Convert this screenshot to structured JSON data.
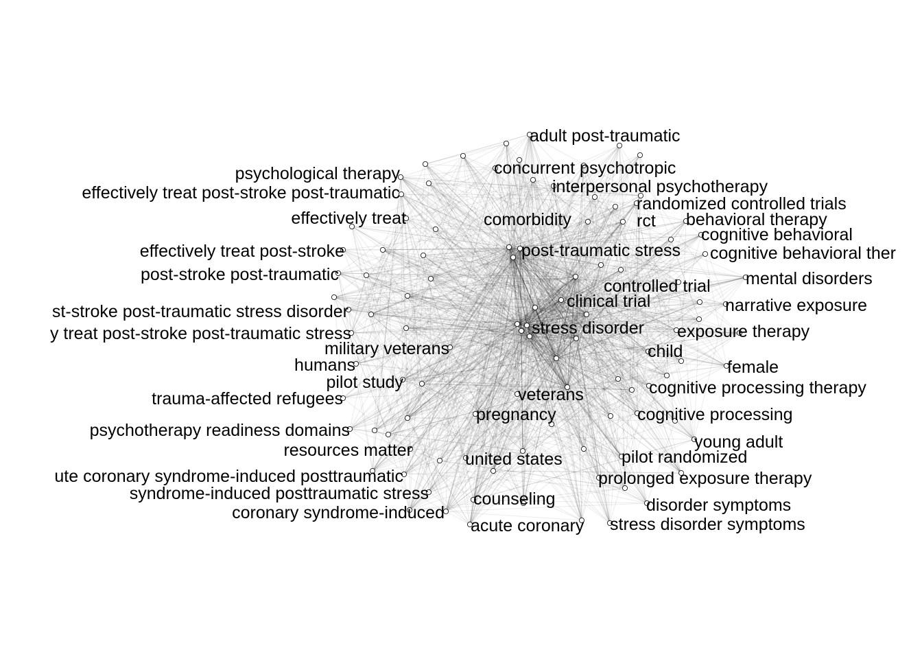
{
  "diagram": {
    "type": "keyword co-occurrence network",
    "node_style": {
      "fill": "#ffffff",
      "stroke": "#000000"
    },
    "edge_color": "#000000",
    "labels": [
      "adult post-traumatic",
      "concurrent psychotropic",
      "interpersonal psychotherapy",
      "randomized controlled trials",
      "rct",
      "behavioral therapy",
      "cognitive behavioral",
      "cognitive behavioral ther",
      "comorbidity",
      "post-traumatic stress",
      "mental disorders",
      "controlled trial",
      "narrative exposure",
      "clinical trial",
      "stress disorder",
      "exposure therapy",
      "child",
      "female",
      "cognitive processing therapy",
      "veterans",
      "pregnancy",
      "cognitive processing",
      "young adult",
      "pilot randomized",
      "united states",
      "prolonged exposure therapy",
      "counseling",
      "disorder symptoms",
      "acute coronary",
      "stress disorder symptoms",
      "psychological therapy",
      "effectively treat post-stroke post-traumatic",
      "effectively treat",
      "effectively treat post-stroke",
      "post-stroke post-traumatic",
      "st-stroke post-traumatic stress disorder",
      "y treat post-stroke post-traumatic stress",
      "military veterans",
      "humans",
      "pilot study",
      "trauma-affected refugees",
      "psychotherapy readiness domains",
      "resources matter",
      "ute coronary syndrome-induced posttraumatic",
      "syndrome-induced posttraumatic stress",
      "coronary syndrome-induced"
    ]
  }
}
